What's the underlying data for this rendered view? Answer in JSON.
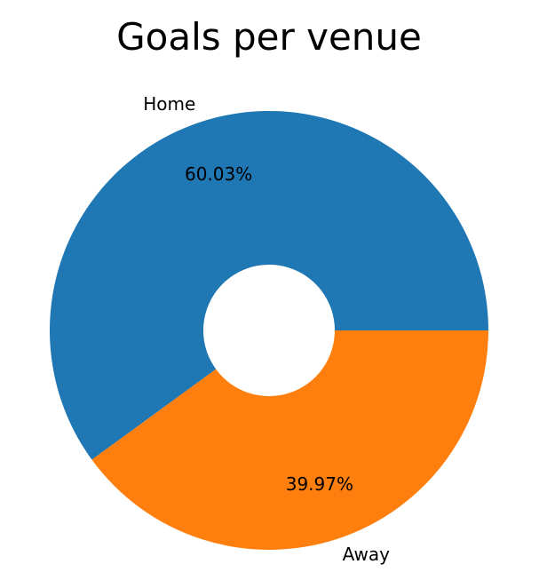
{
  "chart_data": {
    "type": "pie",
    "title": "Goals per venue",
    "categories": [
      "Home",
      "Away"
    ],
    "values": [
      60.03,
      39.97
    ],
    "value_labels": [
      "60.03%",
      "39.97%"
    ],
    "colors": [
      "#1f77b4",
      "#ff7f0e"
    ],
    "donut": true,
    "legend": "none"
  }
}
